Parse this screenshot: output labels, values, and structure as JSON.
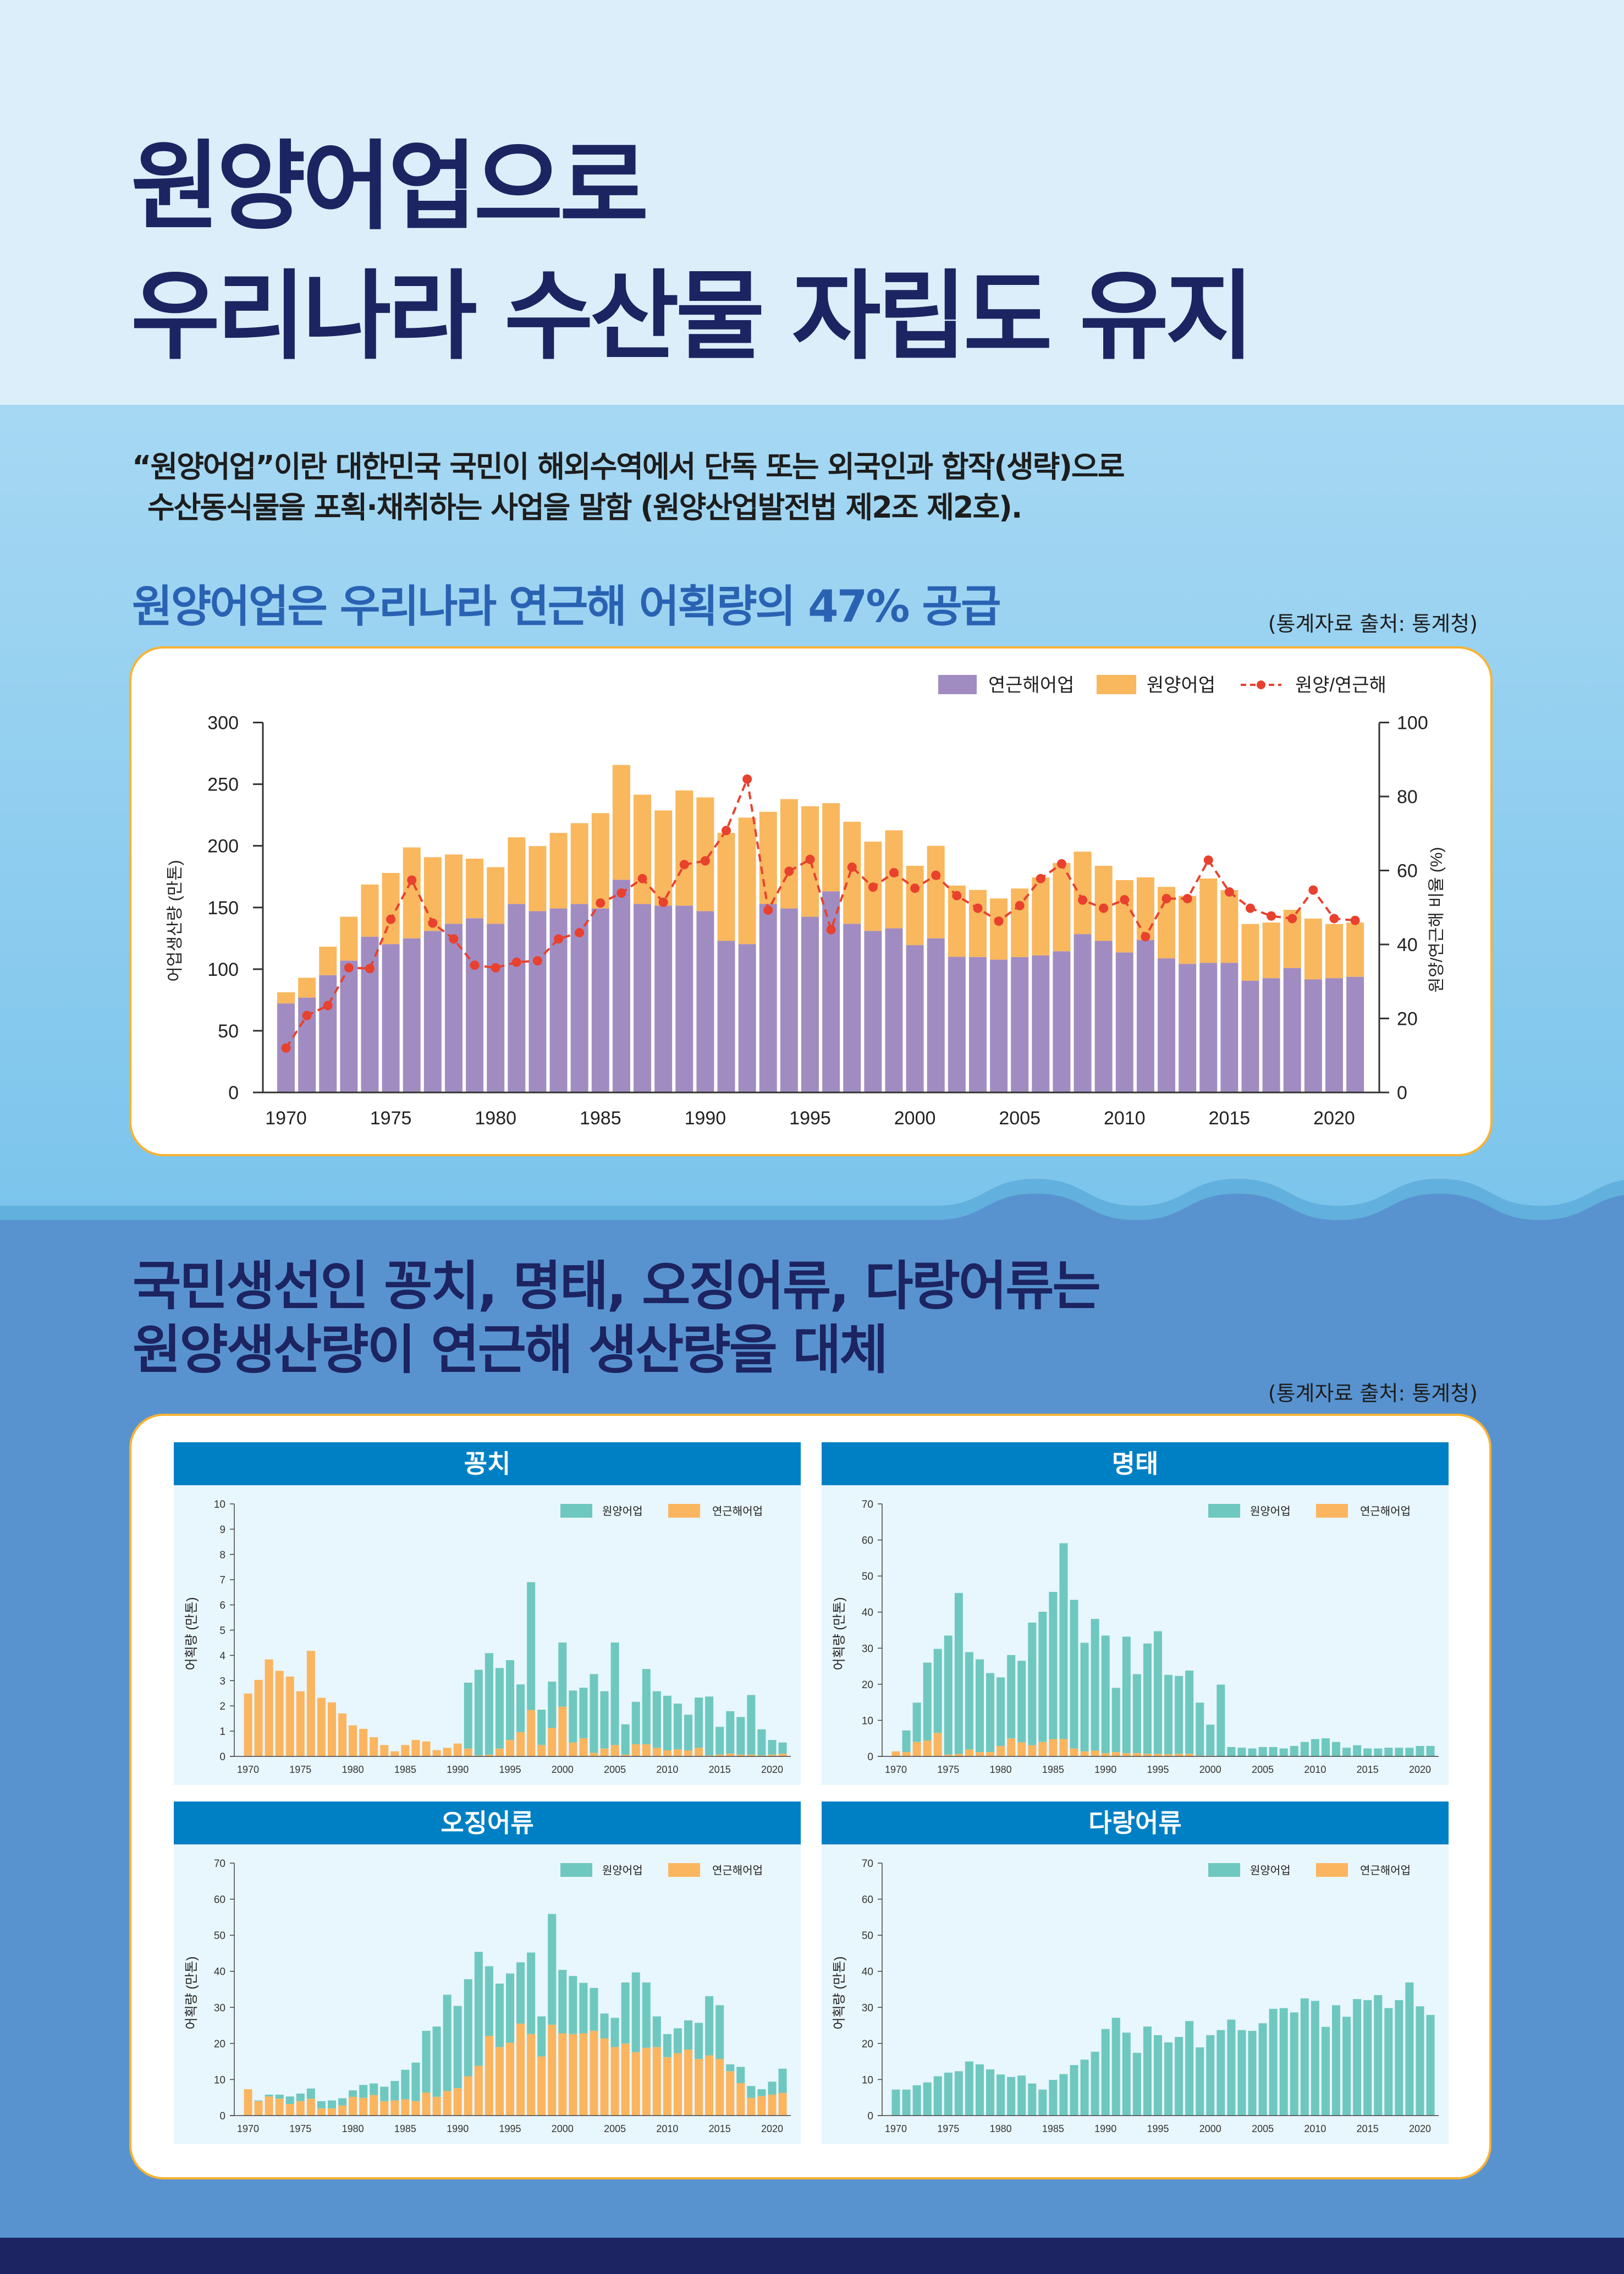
{
  "header": {
    "title_line1": "원양어업으로",
    "title_line2": "우리나라 수산물 자립도 유지"
  },
  "intro": {
    "line1": "“원양어업”이란 대한민국 국민이 해외수역에서 단독 또는 외국인과 합작(생략)으로",
    "line2": "수산동식물을 포획·채취하는 사업을 말함 (원양산업발전법 제2조 제2호)."
  },
  "section1": {
    "heading": "원양어업은 우리나라 연근해 어획량의 47% 공급",
    "source": "(통계자료 출처: 통계청)"
  },
  "section2": {
    "heading_line1": "국민생선인 꽁치, 명태, 오징어류, 다랑어류는",
    "heading_line2": "원양생산량이 연근해 생산량을 대체",
    "source": "(통계자료 출처: 통계청)"
  },
  "colors": {
    "title_navy": "#1c2461",
    "subheading_blue": "#2a62b3",
    "card_border": "#f9b233",
    "panel_header": "#0080c4",
    "coastal_purple": "#a18cc2",
    "distant_orange": "#f9b75e",
    "ratio_red": "#e8412e",
    "teal": "#6ec8bf",
    "orange": "#fbb55f"
  },
  "chart_data": [
    {
      "type": "bar",
      "title": "",
      "stacked": true,
      "x": [
        1970,
        1971,
        1972,
        1973,
        1974,
        1975,
        1976,
        1977,
        1978,
        1979,
        1980,
        1981,
        1982,
        1983,
        1984,
        1985,
        1986,
        1987,
        1988,
        1989,
        1990,
        1991,
        1992,
        1993,
        1994,
        1995,
        1996,
        1997,
        1998,
        1999,
        2000,
        2001,
        2002,
        2003,
        2004,
        2005,
        2006,
        2007,
        2008,
        2009,
        2010,
        2011,
        2012,
        2013,
        2014,
        2015,
        2016,
        2017,
        2018,
        2019,
        2020,
        2021
      ],
      "series": [
        {
          "name": "연근해어업",
          "type": "bar",
          "color": "#a18cc2",
          "values": [
            72.2,
            76.9,
            95.1,
            106.9,
            126.3,
            120.3,
            125.0,
            131.0,
            136.8,
            141.3,
            136.8,
            152.8,
            147.0,
            149.2,
            152.8,
            149.2,
            172.5,
            152.8,
            151.5,
            151.5,
            147.0,
            122.9,
            120.3,
            152.8,
            149.2,
            142.5,
            163.1,
            136.8,
            131.0,
            133.1,
            119.5,
            125.0,
            110.0,
            109.8,
            107.7,
            109.8,
            111.1,
            114.5,
            128.4,
            122.9,
            113.5,
            123.7,
            108.8,
            104.3,
            105.1,
            105.1,
            90.6,
            92.7,
            100.9,
            91.7,
            92.7,
            93.8
          ]
        },
        {
          "name": "원양어업",
          "type": "bar",
          "color": "#f9b75e",
          "values": [
            9.0,
            16.1,
            23.1,
            35.6,
            42.3,
            57.7,
            73.7,
            59.8,
            56.2,
            48.3,
            45.9,
            54.1,
            52.8,
            61.3,
            65.6,
            77.3,
            93.1,
            88.7,
            77.2,
            93.4,
            92.3,
            87.6,
            102.6,
            74.8,
            88.7,
            89.6,
            71.5,
            82.7,
            72.4,
            79.5,
            64.3,
            75.0,
            57.8,
            54.4,
            49.6,
            55.6,
            63.3,
            71.6,
            66.9,
            60.9,
            58.7,
            50.7,
            57.9,
            55.1,
            68.4,
            59.0,
            46.0,
            45.1,
            47.2,
            49.3,
            43.9,
            44.0
          ]
        },
        {
          "name": "원양/연근해",
          "type": "line",
          "axis": "right",
          "color": "#e8412e",
          "values": [
            12.0,
            20.8,
            23.5,
            33.7,
            33.5,
            46.8,
            57.4,
            45.8,
            41.5,
            34.4,
            33.7,
            35.2,
            35.6,
            41.5,
            43.2,
            51.2,
            53.9,
            57.8,
            51.4,
            61.6,
            62.6,
            70.8,
            84.7,
            49.3,
            59.8,
            63.0,
            44.0,
            60.9,
            55.5,
            59.4,
            55.2,
            58.7,
            53.2,
            49.8,
            46.3,
            50.5,
            57.8,
            61.8,
            52.0,
            49.8,
            52.1,
            42.1,
            52.4,
            52.4,
            62.8,
            54.2,
            49.8,
            47.7,
            47.0,
            54.7,
            47.0,
            46.5
          ]
        }
      ],
      "xlabel": "",
      "ylabel": "어업생산량 (만톤)",
      "ylabel_right": "원양/연근해 비율 (%)",
      "ylim": [
        0,
        300
      ],
      "ylim_right": [
        0,
        100
      ],
      "yticks": [
        0,
        50,
        100,
        150,
        200,
        250,
        300
      ],
      "yticks_right": [
        0,
        20,
        40,
        60,
        80,
        100
      ],
      "xticks": [
        1970,
        1975,
        1980,
        1985,
        1990,
        1995,
        2000,
        2005,
        2010,
        2015,
        2020
      ],
      "legend": "top-right",
      "grid": false
    },
    {
      "type": "bar",
      "title": "꽁치",
      "stacked": true,
      "x": [
        1970,
        1971,
        1972,
        1973,
        1974,
        1975,
        1976,
        1977,
        1978,
        1979,
        1980,
        1981,
        1982,
        1983,
        1984,
        1985,
        1986,
        1987,
        1988,
        1989,
        1990,
        1991,
        1992,
        1993,
        1994,
        1995,
        1996,
        1997,
        1998,
        1999,
        2000,
        2001,
        2002,
        2003,
        2004,
        2005,
        2006,
        2007,
        2008,
        2009,
        2010,
        2011,
        2012,
        2013,
        2014,
        2015,
        2016,
        2017,
        2018,
        2019,
        2020,
        2021
      ],
      "series": [
        {
          "name": "원양어업",
          "color": "#6ec8bf",
          "values": [
            0,
            0,
            0,
            0,
            0,
            0,
            0,
            0,
            0,
            0,
            0,
            0,
            0,
            0,
            0,
            0,
            0,
            0,
            0,
            0,
            0,
            2.61,
            3.39,
            4.02,
            3.19,
            3.16,
            1.89,
            5.06,
            1.4,
            1.83,
            2.54,
            2.06,
            2.0,
            3.12,
            2.27,
            4.06,
            1.2,
            1.68,
            2.98,
            2.24,
            2.16,
            1.81,
            1.41,
            1.99,
            2.33,
            1.1,
            1.68,
            1.49,
            2.36,
            1.03,
            0.58,
            0.44
          ]
        },
        {
          "name": "연근해어업",
          "color": "#fbb55f",
          "values": [
            2.49,
            3.03,
            3.84,
            3.39,
            3.16,
            2.58,
            4.18,
            2.32,
            2.14,
            1.7,
            1.23,
            1.09,
            0.76,
            0.45,
            0.2,
            0.45,
            0.65,
            0.59,
            0.25,
            0.34,
            0.51,
            0.31,
            0.04,
            0.07,
            0.31,
            0.65,
            0.96,
            1.84,
            0.45,
            1.13,
            1.97,
            0.55,
            0.72,
            0.14,
            0.31,
            0.45,
            0.07,
            0.48,
            0.48,
            0.34,
            0.24,
            0.28,
            0.24,
            0.34,
            0.04,
            0.07,
            0.11,
            0.07,
            0.07,
            0.04,
            0.07,
            0.11
          ]
        }
      ],
      "xlabel": "",
      "ylabel": "어획량 (만톤)",
      "ylim": [
        0,
        10
      ],
      "yticks": [
        0,
        1,
        2,
        3,
        4,
        5,
        6,
        7,
        8,
        9,
        10
      ],
      "xticks": [
        1970,
        1975,
        1980,
        1985,
        1990,
        1995,
        2000,
        2005,
        2010,
        2015,
        2020
      ],
      "legend": "top-right",
      "grid": false
    },
    {
      "type": "bar",
      "title": "명태",
      "stacked": true,
      "x": [
        1970,
        1971,
        1972,
        1973,
        1974,
        1975,
        1976,
        1977,
        1978,
        1979,
        1980,
        1981,
        1982,
        1983,
        1984,
        1985,
        1986,
        1987,
        1988,
        1989,
        1990,
        1991,
        1992,
        1993,
        1994,
        1995,
        1996,
        1997,
        1998,
        1999,
        2000,
        2001,
        2002,
        2003,
        2004,
        2005,
        2006,
        2007,
        2008,
        2009,
        2010,
        2011,
        2012,
        2013,
        2014,
        2015,
        2016,
        2017,
        2018,
        2019,
        2020,
        2021
      ],
      "series": [
        {
          "name": "원양어업",
          "color": "#6ec8bf",
          "values": [
            0,
            6.0,
            10.9,
            21.6,
            23.3,
            33.0,
            44.6,
            27.0,
            25.7,
            21.9,
            19.0,
            23.1,
            22.6,
            34.0,
            36.1,
            40.8,
            54.3,
            41.2,
            30.1,
            36.5,
            32.6,
            17.8,
            32.3,
            21.9,
            30.6,
            34.0,
            22.0,
            21.6,
            23.1,
            14.7,
            8.6,
            19.9,
            2.6,
            2.4,
            2.2,
            2.6,
            2.6,
            2.2,
            2.9,
            4.0,
            4.8,
            5.0,
            4.0,
            2.4,
            3.1,
            2.2,
            2.2,
            2.4,
            2.4,
            2.4,
            2.9,
            2.9
          ]
        },
        {
          "name": "연근해어업",
          "color": "#fbb55f",
          "values": [
            1.4,
            1.2,
            4.0,
            4.4,
            6.5,
            0.5,
            0.7,
            1.9,
            1.2,
            1.2,
            2.9,
            5.0,
            3.9,
            3.1,
            4.0,
            4.8,
            4.8,
            2.2,
            1.4,
            1.6,
            0.9,
            1.2,
            0.9,
            0.9,
            0.7,
            0.7,
            0.6,
            0.7,
            0.7,
            0.2,
            0.2,
            0,
            0,
            0,
            0,
            0,
            0,
            0,
            0,
            0,
            0,
            0,
            0,
            0,
            0,
            0,
            0,
            0,
            0,
            0,
            0,
            0
          ]
        }
      ],
      "xlabel": "",
      "ylabel": "어획량 (만톤)",
      "ylim": [
        0,
        70
      ],
      "yticks": [
        0,
        10,
        20,
        30,
        40,
        50,
        60,
        70
      ],
      "xticks": [
        1970,
        1975,
        1980,
        1985,
        1990,
        1995,
        2000,
        2005,
        2010,
        2015,
        2020
      ],
      "legend": "top-right",
      "grid": false
    },
    {
      "type": "bar",
      "title": "오징어류",
      "stacked": true,
      "x": [
        1970,
        1971,
        1972,
        1973,
        1974,
        1975,
        1976,
        1977,
        1978,
        1979,
        1980,
        1981,
        1982,
        1983,
        1984,
        1985,
        1986,
        1987,
        1988,
        1989,
        1990,
        1991,
        1992,
        1993,
        1994,
        1995,
        1996,
        1997,
        1998,
        1999,
        2000,
        2001,
        2002,
        2003,
        2004,
        2005,
        2006,
        2007,
        2008,
        2009,
        2010,
        2011,
        2012,
        2013,
        2014,
        2015,
        2016,
        2017,
        2018,
        2019,
        2020,
        2021
      ],
      "series": [
        {
          "name": "원양어업",
          "color": "#6ec8bf",
          "values": [
            0,
            0.2,
            0.5,
            1.1,
            2.1,
            2.1,
            2.8,
            2.0,
            2.2,
            2.0,
            1.8,
            3.6,
            3.2,
            4.0,
            5.4,
            8.2,
            10.7,
            17.1,
            19.5,
            26.7,
            22.8,
            26.9,
            31.6,
            19.3,
            17.6,
            19.2,
            17.0,
            22.6,
            11.1,
            30.7,
            17.6,
            16.1,
            14.0,
            11.9,
            6.9,
            8.1,
            16.9,
            22.1,
            18.1,
            8.5,
            6.4,
            6.9,
            8.1,
            10.0,
            16.4,
            14.9,
            1.9,
            4.5,
            3.3,
            1.9,
            3.6,
            6.7
          ]
        },
        {
          "name": "연근해어업",
          "color": "#fbb55f",
          "values": [
            7.3,
            4.0,
            5.3,
            4.7,
            3.2,
            4.0,
            4.7,
            2.0,
            2.0,
            2.8,
            5.2,
            4.9,
            5.7,
            4.0,
            4.2,
            4.5,
            4.0,
            6.4,
            5.2,
            6.8,
            7.6,
            10.9,
            13.8,
            22.1,
            19.0,
            20.2,
            25.5,
            22.6,
            16.4,
            25.2,
            22.8,
            22.6,
            22.8,
            23.5,
            21.4,
            19.0,
            20.0,
            17.6,
            18.8,
            19.0,
            16.2,
            17.3,
            18.3,
            15.7,
            16.7,
            15.7,
            12.3,
            9.0,
            4.9,
            5.4,
            5.8,
            6.3
          ]
        }
      ],
      "xlabel": "",
      "ylabel": "어획량 (만톤)",
      "ylim": [
        0,
        70
      ],
      "yticks": [
        0,
        10,
        20,
        30,
        40,
        50,
        60,
        70
      ],
      "xticks": [
        1970,
        1975,
        1980,
        1985,
        1990,
        1995,
        2000,
        2005,
        2010,
        2015,
        2020
      ],
      "legend": "top-right",
      "grid": false
    },
    {
      "type": "bar",
      "title": "다랑어류",
      "stacked": true,
      "x": [
        1970,
        1971,
        1972,
        1973,
        1974,
        1975,
        1976,
        1977,
        1978,
        1979,
        1980,
        1981,
        1982,
        1983,
        1984,
        1985,
        1986,
        1987,
        1988,
        1989,
        1990,
        1991,
        1992,
        1993,
        1994,
        1995,
        1996,
        1997,
        1998,
        1999,
        2000,
        2001,
        2002,
        2003,
        2004,
        2005,
        2006,
        2007,
        2008,
        2009,
        2010,
        2011,
        2012,
        2013,
        2014,
        2015,
        2016,
        2017,
        2018,
        2019,
        2020,
        2021
      ],
      "series": [
        {
          "name": "원양어업",
          "color": "#6ec8bf",
          "values": [
            7.2,
            7.2,
            8.4,
            9.2,
            10.9,
            11.9,
            12.3,
            15.0,
            14.2,
            12.8,
            11.4,
            10.7,
            11.1,
            8.9,
            7.2,
            9.9,
            11.5,
            14.0,
            15.5,
            17.7,
            24.0,
            27.1,
            23.0,
            17.4,
            24.7,
            22.3,
            20.3,
            21.8,
            26.2,
            18.9,
            22.3,
            23.7,
            26.6,
            23.7,
            23.5,
            25.6,
            29.6,
            29.8,
            28.6,
            32.5,
            31.8,
            24.6,
            30.6,
            27.4,
            32.3,
            32.0,
            33.4,
            29.8,
            32.0,
            36.9,
            30.3,
            27.9
          ]
        },
        {
          "name": "연근해어업",
          "color": "#fbb55f",
          "values": [
            0,
            0,
            0,
            0,
            0,
            0,
            0,
            0,
            0,
            0,
            0,
            0,
            0,
            0,
            0,
            0,
            0,
            0,
            0,
            0,
            0,
            0,
            0,
            0,
            0,
            0,
            0,
            0,
            0,
            0,
            0,
            0,
            0,
            0,
            0,
            0,
            0,
            0,
            0,
            0,
            0,
            0,
            0,
            0,
            0,
            0,
            0,
            0,
            0,
            0,
            0,
            0
          ]
        }
      ],
      "xlabel": "",
      "ylabel": "어획량 (만톤)",
      "ylim": [
        0,
        70
      ],
      "yticks": [
        0,
        10,
        20,
        30,
        40,
        50,
        60,
        70
      ],
      "xticks": [
        1970,
        1975,
        1980,
        1985,
        1990,
        1995,
        2000,
        2005,
        2010,
        2015,
        2020
      ],
      "legend": "top-right",
      "grid": false
    }
  ]
}
